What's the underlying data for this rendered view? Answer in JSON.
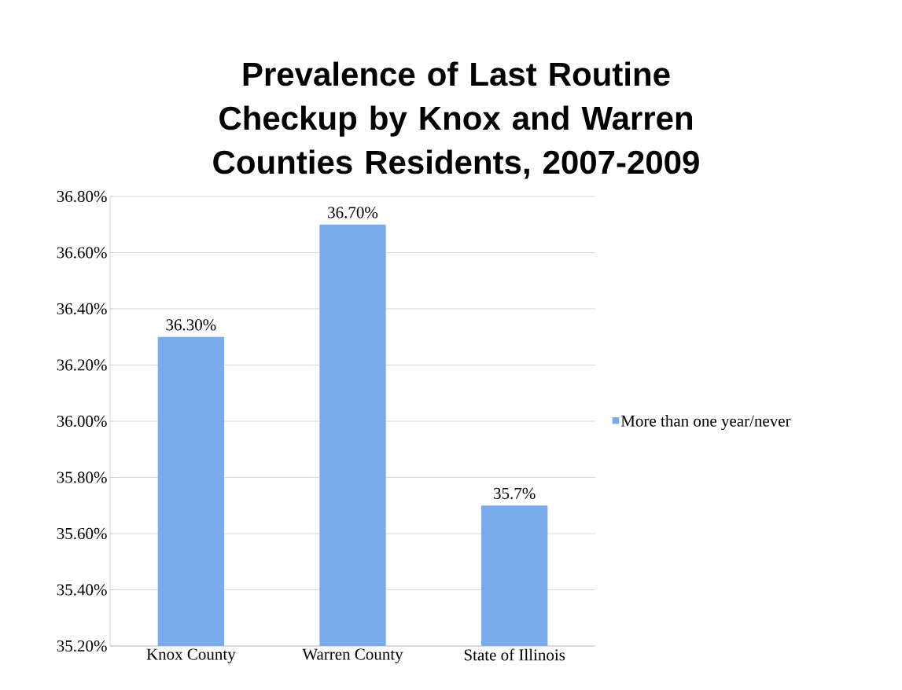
{
  "chart_data": {
    "type": "bar",
    "title": "Prevalence of Last Routine Checkup by Knox and Warren Counties Residents, 2007-2009",
    "categories": [
      "Knox County",
      "Warren County",
      "State of Illinois"
    ],
    "series": [
      {
        "name": "More than one year/never",
        "color": "#7aaaea",
        "values": [
          36.3,
          36.7,
          35.7
        ],
        "value_labels": [
          "36.30%",
          "36.70%",
          "35.7%"
        ]
      }
    ],
    "ylim": [
      35.2,
      36.8
    ],
    "yticks": [
      {
        "value": 35.2,
        "label": "35.20%"
      },
      {
        "value": 35.4,
        "label": "35.40%"
      },
      {
        "value": 35.6,
        "label": "35.60%"
      },
      {
        "value": 35.8,
        "label": "35.80%"
      },
      {
        "value": 36.0,
        "label": "36.00%"
      },
      {
        "value": 36.2,
        "label": "36.20%"
      },
      {
        "value": 36.4,
        "label": "36.40%"
      },
      {
        "value": 36.6,
        "label": "36.60%"
      },
      {
        "value": 36.8,
        "label": "36.80%"
      }
    ],
    "grid": "y",
    "legend": "right"
  }
}
